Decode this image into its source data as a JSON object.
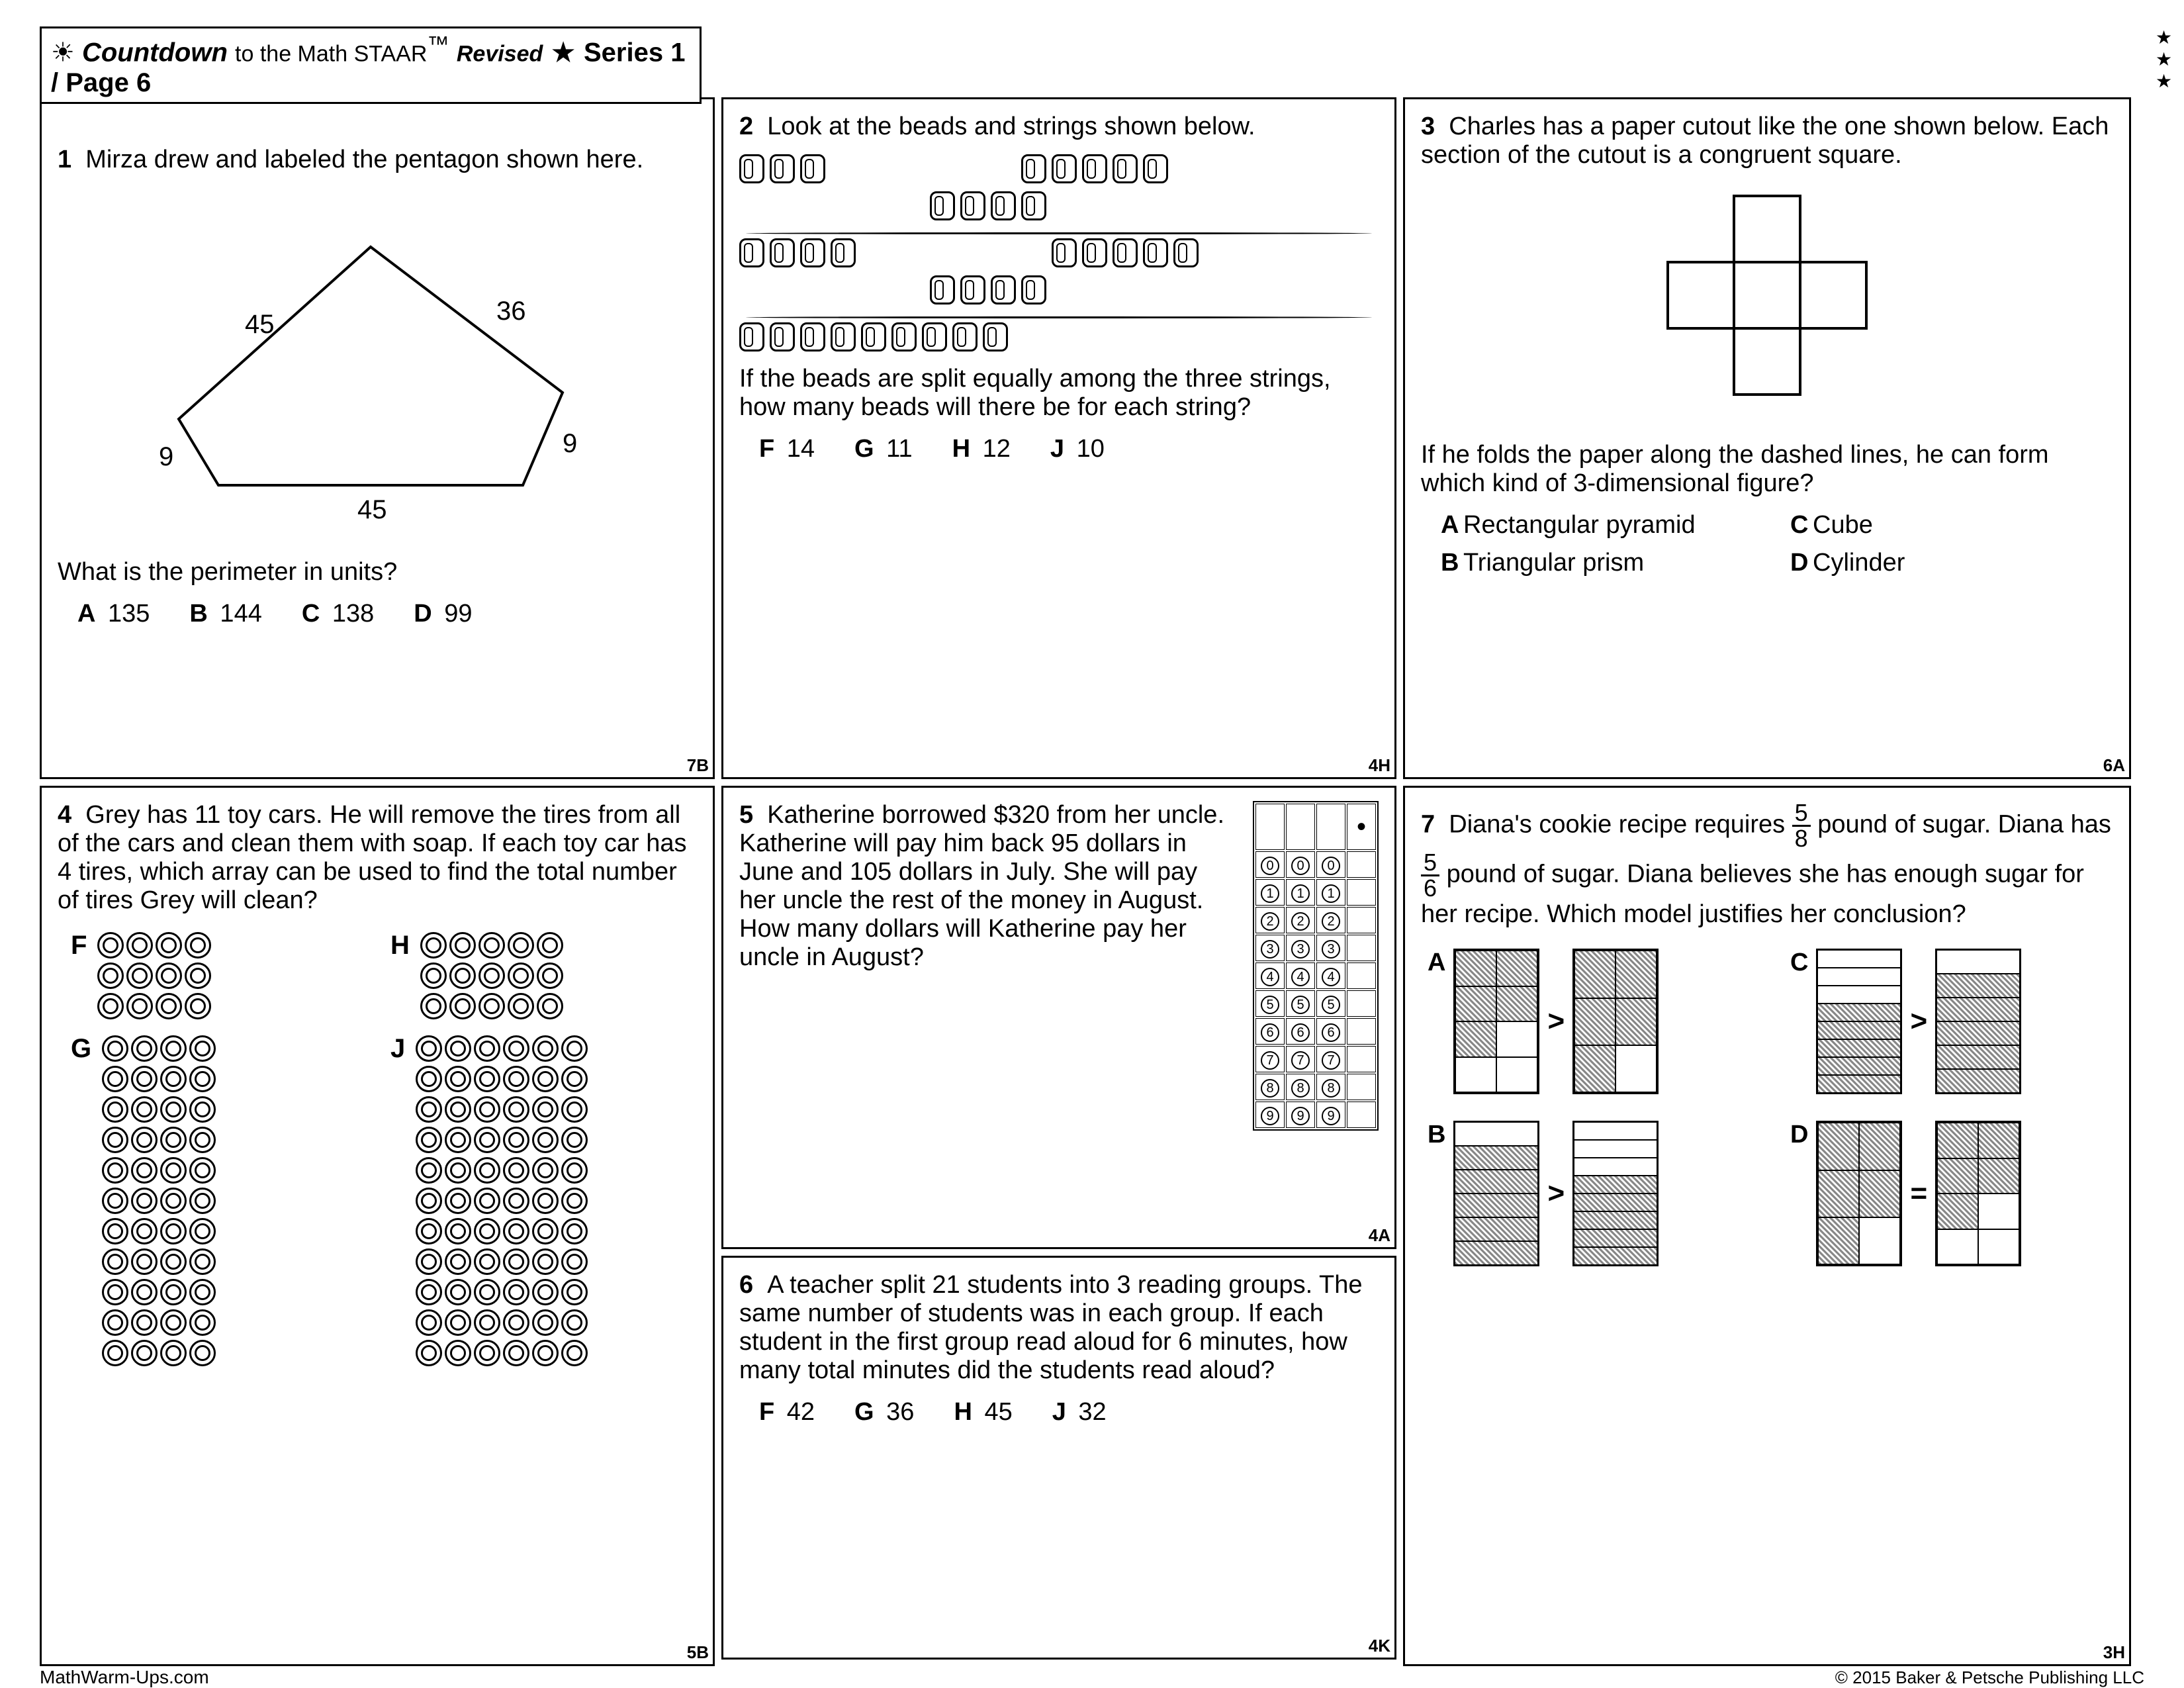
{
  "header": {
    "title": "Countdown",
    "sub": "to the Math STAAR",
    "tm": "™",
    "rev": "Revised",
    "series": "Series 1 / Page 6"
  },
  "q1": {
    "num": "1",
    "text1": "Mirza drew and labeled the pentagon shown here.",
    "sides": {
      "s1": "45",
      "s2": "36",
      "s3": "9",
      "s4": "45",
      "s5": "9"
    },
    "q": "What is the perimeter in units?",
    "opts": [
      [
        "A",
        "135"
      ],
      [
        "B",
        "144"
      ],
      [
        "C",
        "138"
      ],
      [
        "D",
        "99"
      ]
    ],
    "tag": "7B"
  },
  "q2": {
    "num": "2",
    "text1": "Look at the beads and strings shown below.",
    "q": "If the beads are split equally among the three strings, how many beads will there be for each string?",
    "opts": [
      [
        "F",
        "14"
      ],
      [
        "G",
        "11"
      ],
      [
        "H",
        "12"
      ],
      [
        "J",
        "10"
      ]
    ],
    "tag": "4H"
  },
  "q3": {
    "num": "3",
    "text1": "Charles has a paper cutout like the one shown below. Each section of the cutout is a congruent square.",
    "q": "If he folds the paper along the dashed lines, he can form which kind of 3-dimensional figure?",
    "opts": [
      [
        "A",
        "Rectangular pyramid"
      ],
      [
        "C",
        "Cube"
      ],
      [
        "B",
        "Triangular prism"
      ],
      [
        "D",
        "Cylinder"
      ]
    ],
    "tag": "6A"
  },
  "q4": {
    "num": "4",
    "text1": "Grey has 11 toy cars. He will remove the tires from all of the cars and clean them with soap. If each toy car has 4 tires, which array can be used to find the total number of tires Grey will clean?",
    "arrays": {
      "F": {
        "rows": 3,
        "cols": 4
      },
      "H": {
        "rows": 3,
        "cols": 5
      },
      "G": {
        "rows": 11,
        "cols": 4
      },
      "J": {
        "rows": 11,
        "cols": 6
      }
    },
    "tag": "5B"
  },
  "q5": {
    "num": "5",
    "text1": "Katherine borrowed $320 from her uncle. Katherine will pay him back 95 dollars in June and 105 dollars in July. She will pay her uncle the rest of the money in August. How many dollars will Katherine pay her uncle in August?",
    "tag": "4A"
  },
  "q6": {
    "num": "6",
    "text1": "A teacher split 21 students into 3 reading groups. The same number of students was in each group. If each student in the first group read aloud for 6 minutes, how many total minutes did the students read aloud?",
    "opts": [
      [
        "F",
        "42"
      ],
      [
        "G",
        "36"
      ],
      [
        "H",
        "45"
      ],
      [
        "J",
        "32"
      ]
    ],
    "tag": "4K"
  },
  "q7": {
    "num": "7",
    "text1a": "Diana's cookie recipe requires ",
    "text1b": " pound of sugar. Diana has ",
    "text1c": " pound of sugar. Diana believes she has enough sugar for her recipe. Which model justifies her conclusion?",
    "frac1": {
      "n": "5",
      "d": "8"
    },
    "frac2": {
      "n": "5",
      "d": "6"
    },
    "signs": {
      "A": ">",
      "B": ">",
      "C": ">",
      "D": "="
    },
    "tag": "3H"
  },
  "footer": {
    "left": "MathWarm-Ups.com",
    "right": "© 2015 Baker & Petsche Publishing LLC"
  }
}
